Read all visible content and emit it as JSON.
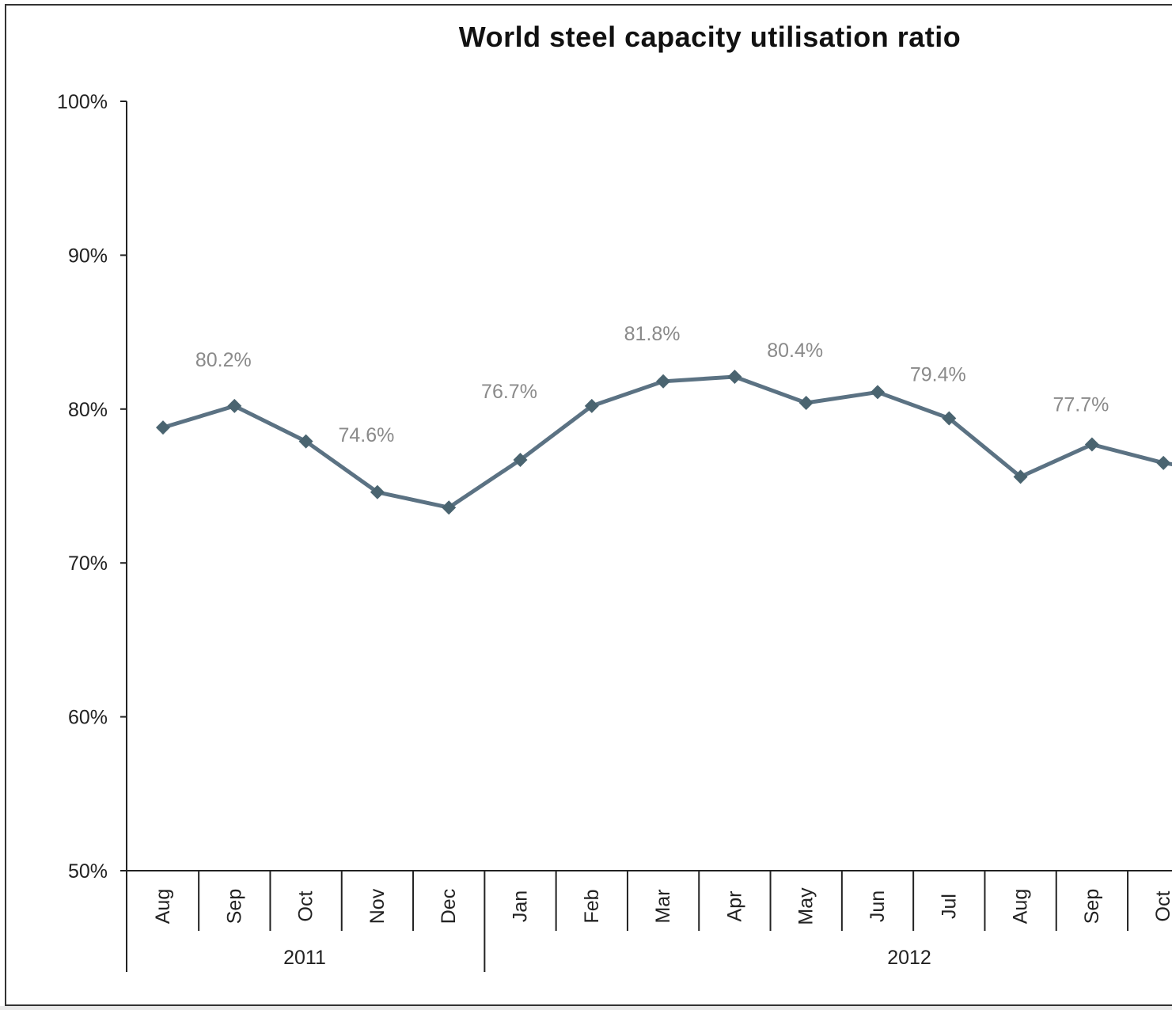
{
  "chart_data": {
    "type": "line",
    "title": "World steel capacity utilisation ratio",
    "y_ticks": [
      "100%",
      "90%",
      "80%",
      "70%",
      "60%",
      "50%"
    ],
    "ylim": [
      50,
      100
    ],
    "categories": [
      "Aug",
      "Sep",
      "Oct",
      "Nov",
      "Dec",
      "Jan",
      "Feb",
      "Mar",
      "Apr",
      "May",
      "Jun",
      "Jul",
      "Aug",
      "Sep",
      "Oct"
    ],
    "year_groups": [
      {
        "label": "2011",
        "start": 0,
        "end": 4
      },
      {
        "label": "2012",
        "start": 5,
        "end": 14
      }
    ],
    "series": [
      {
        "values": [
          78.8,
          80.2,
          77.9,
          74.6,
          73.6,
          76.7,
          80.2,
          81.8,
          82.1,
          80.4,
          81.1,
          79.4,
          75.6,
          77.7,
          76.5
        ]
      }
    ],
    "data_labels": [
      {
        "index": 1,
        "text": "80.2%"
      },
      {
        "index": 3,
        "text": "74.6%"
      },
      {
        "index": 5,
        "text": "76.7%"
      },
      {
        "index": 7,
        "text": "81.8%"
      },
      {
        "index": 9,
        "text": "80.4%"
      },
      {
        "index": 11,
        "text": "79.4%"
      },
      {
        "index": 13,
        "text": "77.7%"
      }
    ],
    "line_color": "#5b7283",
    "marker_color": "#4a6470",
    "grid": false,
    "legend": "none"
  }
}
